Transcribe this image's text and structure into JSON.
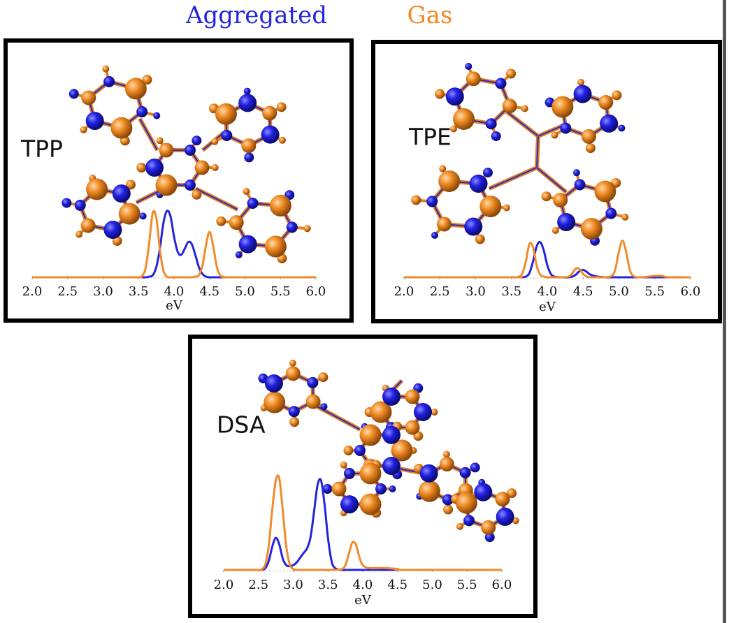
{
  "chart_data": [
    {
      "type": "line",
      "title": "TPP",
      "xlabel": "eV",
      "x": [
        2.0,
        3.4,
        3.5,
        3.55,
        3.6,
        3.65,
        3.7,
        3.75,
        3.8,
        3.85,
        3.9,
        3.95,
        4.0,
        4.05,
        4.1,
        4.15,
        4.2,
        4.25,
        4.3,
        4.35,
        4.4,
        4.45,
        4.5,
        4.55,
        4.6,
        4.65,
        4.7,
        4.8,
        6.0
      ],
      "series": [
        {
          "name": "Aggregated",
          "color": "#2424dc",
          "values": [
            0,
            0,
            0,
            0,
            0,
            0.01,
            0.03,
            0.15,
            0.42,
            0.8,
            0.98,
            0.9,
            0.6,
            0.38,
            0.33,
            0.42,
            0.52,
            0.49,
            0.33,
            0.15,
            0.05,
            0.01,
            0,
            0,
            0,
            0,
            0,
            0,
            0
          ]
        },
        {
          "name": "Gas",
          "color": "#f28a2a",
          "values": [
            0,
            0,
            0,
            0.02,
            0.14,
            0.51,
            0.95,
            0.88,
            0.41,
            0.1,
            0.01,
            0,
            0,
            0,
            0,
            0,
            0,
            0,
            0.01,
            0.03,
            0.17,
            0.47,
            0.67,
            0.47,
            0.17,
            0.03,
            0.01,
            0,
            0
          ]
        }
      ],
      "xlim": [
        2.0,
        6.0
      ],
      "ylim": [
        0,
        1
      ],
      "xticks": [
        {
          "value": 2.0,
          "label": "2.0"
        },
        {
          "value": 2.5,
          "label": "2.5"
        },
        {
          "value": 3.0,
          "label": "3.0"
        },
        {
          "value": 3.5,
          "label": "3.5"
        },
        {
          "value": 4.0,
          "label": "4.0"
        },
        {
          "value": 4.5,
          "label": "4.5"
        },
        {
          "value": 5.0,
          "label": "5.0"
        },
        {
          "value": 5.5,
          "label": "5.5"
        },
        {
          "value": 6.0,
          "label": "6.0"
        }
      ]
    },
    {
      "type": "line",
      "title": "TPE",
      "xlabel": "eV",
      "x": [
        2.0,
        3.5,
        3.6,
        3.65,
        3.7,
        3.75,
        3.8,
        3.85,
        3.9,
        3.95,
        4.0,
        4.05,
        4.1,
        4.2,
        4.3,
        4.35,
        4.4,
        4.45,
        4.5,
        4.55,
        4.6,
        4.7,
        4.8,
        4.9,
        4.95,
        5.0,
        5.05,
        5.1,
        5.15,
        5.2,
        5.3,
        5.5,
        5.6,
        5.7,
        6.0
      ],
      "series": [
        {
          "name": "Aggregated",
          "color": "#2424dc",
          "values": [
            0,
            0,
            0,
            0,
            0.01,
            0.06,
            0.23,
            0.45,
            0.52,
            0.4,
            0.18,
            0.05,
            0.01,
            0,
            0,
            0.01,
            0.04,
            0.09,
            0.11,
            0.08,
            0.04,
            0.01,
            0,
            0,
            0,
            0,
            0,
            0,
            0,
            0,
            0,
            0,
            0,
            0,
            0
          ]
        },
        {
          "name": "Gas",
          "color": "#f28a2a",
          "values": [
            0,
            0,
            0.01,
            0.05,
            0.23,
            0.49,
            0.45,
            0.18,
            0.04,
            0.01,
            0,
            0,
            0,
            0,
            0.01,
            0.06,
            0.13,
            0.12,
            0.05,
            0.01,
            0,
            0,
            0,
            0.02,
            0.12,
            0.38,
            0.54,
            0.38,
            0.12,
            0.02,
            0,
            0.02,
            0.02,
            0,
            0
          ]
        }
      ],
      "xlim": [
        2.0,
        6.0
      ],
      "ylim": [
        0,
        1
      ],
      "xticks": [
        {
          "value": 2.0,
          "label": "2.0"
        },
        {
          "value": 2.5,
          "label": "2.5"
        },
        {
          "value": 3.0,
          "label": "3.0"
        },
        {
          "value": 3.5,
          "label": "3.5"
        },
        {
          "value": 4.0,
          "label": "4.0"
        },
        {
          "value": 4.5,
          "label": "4.5"
        },
        {
          "value": 5.0,
          "label": "5.0"
        },
        {
          "value": 5.5,
          "label": "5.5"
        },
        {
          "value": 6.0,
          "label": "6.0"
        }
      ]
    },
    {
      "type": "line",
      "title": "DSA",
      "xlabel": "eV",
      "x": [
        2.0,
        2.5,
        2.55,
        2.6,
        2.65,
        2.7,
        2.75,
        2.8,
        2.85,
        2.9,
        2.95,
        3.0,
        3.05,
        3.1,
        3.15,
        3.2,
        3.25,
        3.3,
        3.35,
        3.4,
        3.45,
        3.5,
        3.55,
        3.6,
        3.7,
        3.75,
        3.8,
        3.85,
        3.9,
        3.95,
        4.0,
        4.1,
        4.3,
        4.5,
        4.6,
        6.0
      ],
      "series": [
        {
          "name": "Aggregated",
          "color": "#2424dc",
          "values": [
            0,
            0,
            0,
            0.02,
            0.1,
            0.25,
            0.34,
            0.27,
            0.12,
            0.05,
            0.04,
            0.05,
            0.08,
            0.13,
            0.18,
            0.23,
            0.35,
            0.62,
            0.9,
            0.95,
            0.7,
            0.34,
            0.1,
            0.02,
            0,
            0,
            0,
            0,
            0,
            0,
            0,
            0,
            0,
            0,
            0,
            0
          ]
        },
        {
          "name": "Gas",
          "color": "#f28a2a",
          "values": [
            0,
            0,
            0.01,
            0.06,
            0.27,
            0.65,
            0.95,
            0.97,
            0.63,
            0.25,
            0.06,
            0.01,
            0,
            0,
            0,
            0,
            0,
            0,
            0,
            0,
            0,
            0,
            0,
            0,
            0.01,
            0.05,
            0.17,
            0.29,
            0.27,
            0.14,
            0.05,
            0.02,
            0.02,
            0.01,
            0,
            0
          ]
        }
      ],
      "xlim": [
        2.0,
        6.0
      ],
      "ylim": [
        0,
        1
      ],
      "xticks": [
        {
          "value": 2.0,
          "label": "2.0"
        },
        {
          "value": 2.5,
          "label": "2.5"
        },
        {
          "value": 3.0,
          "label": "3.0"
        },
        {
          "value": 3.5,
          "label": "3.5"
        },
        {
          "value": 4.0,
          "label": "4.0"
        },
        {
          "value": 4.5,
          "label": "4.5"
        },
        {
          "value": 5.0,
          "label": "5.0"
        },
        {
          "value": 5.5,
          "label": "5.5"
        },
        {
          "value": 6.0,
          "label": "6.0"
        }
      ]
    }
  ]
}
